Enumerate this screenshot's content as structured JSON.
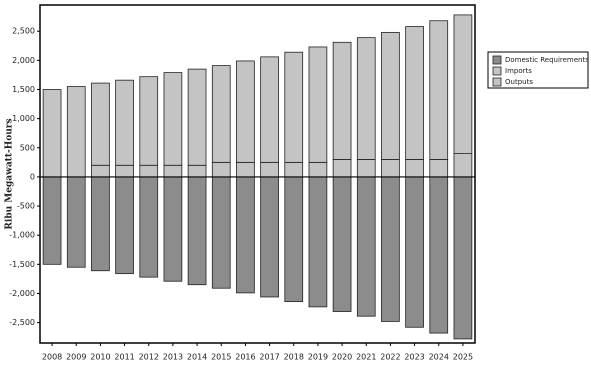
{
  "chart_data": {
    "type": "bar",
    "stacked": true,
    "y_label": "Ribu Megawatt-Hours",
    "categories": [
      "2008",
      "2009",
      "2010",
      "2011",
      "2012",
      "2013",
      "2014",
      "2015",
      "2016",
      "2017",
      "2018",
      "2019",
      "2020",
      "2021",
      "2022",
      "2023",
      "2024",
      "2025"
    ],
    "series": [
      {
        "name": "Domestic Requirements",
        "color": "#8c8c8c",
        "values": [
          -1500,
          -1550,
          -1610,
          -1660,
          -1720,
          -1790,
          -1850,
          -1910,
          -1990,
          -2060,
          -2140,
          -2230,
          -2310,
          -2390,
          -2480,
          -2580,
          -2680,
          -2780
        ]
      },
      {
        "name": "Imports",
        "color": "#c4c4c4",
        "values": [
          0,
          0,
          200,
          200,
          200,
          200,
          200,
          250,
          250,
          250,
          250,
          250,
          300,
          300,
          300,
          300,
          300,
          400
        ]
      },
      {
        "name": "Outputs",
        "color": "#c4c4c4",
        "values": [
          1500,
          1550,
          1410,
          1460,
          1520,
          1590,
          1650,
          1660,
          1740,
          1810,
          1890,
          1980,
          2010,
          2090,
          2180,
          2280,
          2380,
          2380
        ]
      }
    ],
    "ylim": [
      -2850,
      2950
    ],
    "yticks": [
      {
        "value": -2500,
        "label": "-2,500"
      },
      {
        "value": -2000,
        "label": "-2,000"
      },
      {
        "value": -1500,
        "label": "-1,500"
      },
      {
        "value": -1000,
        "label": "-1,000"
      },
      -500,
      0,
      500,
      {
        "value": 1000,
        "label": "1,000"
      },
      {
        "value": 1500,
        "label": "1,500"
      },
      {
        "value": 2000,
        "label": "2,000"
      },
      {
        "value": 2500,
        "label": "2,500"
      }
    ],
    "legend": "right"
  }
}
